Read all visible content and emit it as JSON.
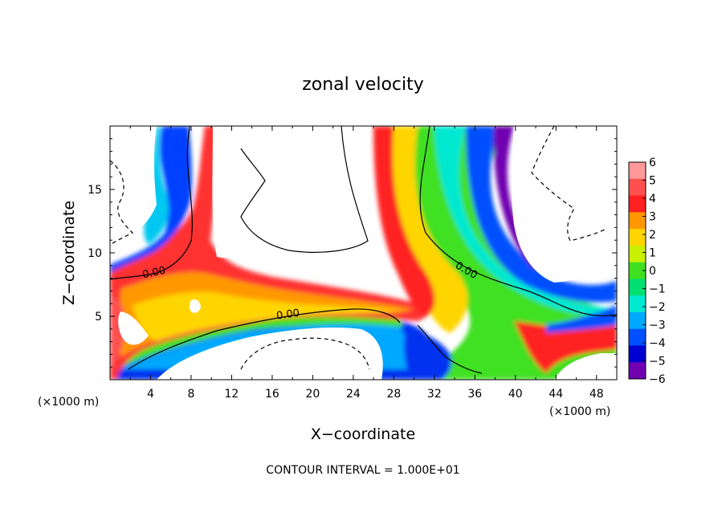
{
  "chart_data": {
    "type": "heatmap",
    "title": "zonal velocity",
    "xlabel": "X−coordinate",
    "ylabel": "Z−coordinate",
    "x_unit": "(×1000 m)",
    "x_unit_right": "(×1000 m)",
    "footer": "CONTOUR INTERVAL = 1.000E+01",
    "xlim": [
      0,
      50
    ],
    "ylim": [
      0,
      20
    ],
    "x_ticks": [
      4,
      8,
      12,
      16,
      20,
      24,
      28,
      32,
      36,
      40,
      44,
      48
    ],
    "y_ticks": [
      5,
      10,
      15
    ],
    "contour_labels": [
      {
        "text": "0.00",
        "x": 4.4,
        "y": 8.2,
        "angle": -12
      },
      {
        "text": "0.00",
        "x": 17.6,
        "y": 4.9,
        "angle": -8
      },
      {
        "text": "0.00",
        "x": 35.0,
        "y": 8.4,
        "angle": 30
      }
    ],
    "colorbar": {
      "min": -6,
      "max": 6,
      "labels": [
        "6",
        "5",
        "4",
        "3",
        "2",
        "1",
        "0",
        "−1",
        "−2",
        "−3",
        "−4",
        "−5",
        "−6"
      ],
      "colors": [
        "#ff9999",
        "#ff5050",
        "#ff2020",
        "#ff9800",
        "#ffd500",
        "#c8f000",
        "#40e020",
        "#00e070",
        "#00e8d0",
        "#00a8ff",
        "#0050ff",
        "#0000d0",
        "#7000b0"
      ]
    }
  }
}
